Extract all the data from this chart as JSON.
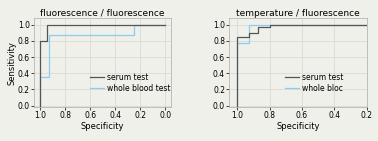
{
  "plot1": {
    "title": "fluorescence / fluorescence",
    "serum": {
      "x": [
        1.0,
        1.0,
        0.95,
        0.95,
        0.0
      ],
      "y": [
        0.0,
        0.8,
        0.8,
        1.0,
        1.0
      ]
    },
    "whole_blood": {
      "x": [
        1.0,
        1.0,
        0.93,
        0.93,
        0.87,
        0.87,
        0.25,
        0.25,
        0.0
      ],
      "y": [
        0.0,
        0.35,
        0.35,
        0.87,
        0.87,
        0.87,
        0.87,
        1.0,
        1.0
      ]
    }
  },
  "plot2": {
    "title": "temperature / fluorescence",
    "serum": {
      "x": [
        1.0,
        1.0,
        0.93,
        0.93,
        0.87,
        0.87,
        0.8,
        0.8,
        0.0
      ],
      "y": [
        0.0,
        0.85,
        0.85,
        0.9,
        0.9,
        0.97,
        0.97,
        1.0,
        1.0
      ]
    },
    "whole_blood": {
      "x": [
        1.0,
        1.0,
        0.93,
        0.93,
        0.0
      ],
      "y": [
        0.0,
        0.78,
        0.78,
        1.0,
        1.0
      ]
    }
  },
  "serum_color": "#555555",
  "whole_blood_color": "#87CEEF",
  "background_color": "#f0f0ea",
  "grid_color": "#d0d0c8",
  "xlabel": "Specificity",
  "ylabel": "Sensitivity",
  "legend1": [
    "serum test",
    "whole blood test"
  ],
  "legend2": [
    "serum test",
    "whole bloc"
  ],
  "title_fontsize": 6.5,
  "label_fontsize": 6,
  "tick_fontsize": 5.5,
  "legend_fontsize": 5.5,
  "xlim1": [
    1.05,
    -0.05
  ],
  "xlim2": [
    1.05,
    0.2
  ],
  "ylim": [
    -0.02,
    1.08
  ]
}
